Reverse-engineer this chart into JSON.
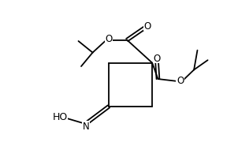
{
  "bg_color": "#ffffff",
  "line_color": "#000000",
  "lw": 1.3,
  "fs": 8.5,
  "xlim": [
    0,
    10
  ],
  "ylim": [
    0,
    7
  ],
  "figsize": [
    3.02,
    2.05
  ],
  "dpi": 100
}
